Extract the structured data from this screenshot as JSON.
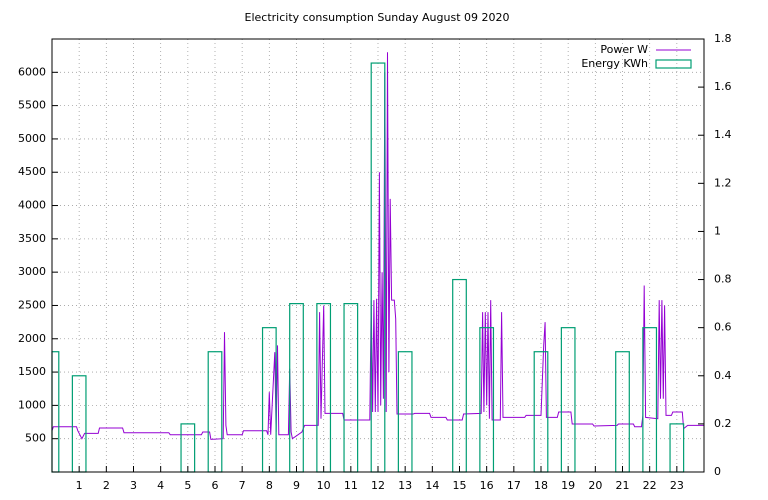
{
  "chart_data": {
    "type": "line",
    "title": "Electricity consumption Sunday August 09 2020",
    "xlim": [
      0,
      24
    ],
    "xticks": [
      1,
      2,
      3,
      4,
      5,
      6,
      7,
      8,
      9,
      10,
      11,
      12,
      13,
      14,
      15,
      16,
      17,
      18,
      19,
      20,
      21,
      22,
      23
    ],
    "ylim": [
      0,
      6500
    ],
    "yticks": [
      500,
      1000,
      1500,
      2000,
      2500,
      3000,
      3500,
      4000,
      4500,
      5000,
      5500,
      6000
    ],
    "y2lim": [
      0,
      1.8
    ],
    "y2ticks": [
      0,
      0.2,
      0.4,
      0.6,
      0.8,
      1,
      1.2,
      1.4,
      1.6,
      1.8
    ],
    "grid": true,
    "legend": "top-right",
    "series": [
      {
        "name": "Power W",
        "color": "#9400d3",
        "x": [
          0,
          0.05,
          0.9,
          0.95,
          1.1,
          1.2,
          1.7,
          1.75,
          2.6,
          2.65,
          4.3,
          4.35,
          5.5,
          5.55,
          5.8,
          5.85,
          6.3,
          6.35,
          6.4,
          6.45,
          7,
          7.05,
          7.9,
          7.95,
          8.0,
          8.05,
          8.2,
          8.25,
          8.3,
          8.35,
          8.7,
          8.75,
          8.8,
          8.85,
          9.2,
          9.3,
          9.8,
          9.85,
          9.9,
          10.0,
          10.05,
          10.7,
          10.75,
          11.7,
          11.75,
          11.8,
          11.85,
          11.9,
          11.95,
          12.0,
          12.05,
          12.1,
          12.15,
          12.2,
          12.25,
          12.3,
          12.35,
          12.4,
          12.45,
          12.5,
          12.6,
          12.65,
          12.7,
          13.3,
          13.35,
          13.9,
          13.95,
          14.5,
          14.55,
          15.1,
          15.15,
          15.8,
          15.85,
          15.9,
          15.95,
          16.0,
          16.05,
          16.1,
          16.15,
          16.2,
          16.5,
          16.55,
          16.6,
          17.4,
          17.45,
          18.0,
          18.1,
          18.15,
          18.2,
          18.6,
          18.65,
          19.1,
          19.15,
          19.9,
          19.95,
          20.8,
          20.85,
          21.4,
          21.45,
          21.7,
          21.75,
          21.8,
          21.85,
          22.3,
          22.35,
          22.4,
          22.45,
          22.5,
          22.55,
          22.6,
          22.8,
          22.85,
          23.2,
          23.25,
          23.4,
          24
        ],
        "values": [
          620,
          680,
          680,
          620,
          500,
          580,
          580,
          660,
          660,
          590,
          590,
          560,
          560,
          600,
          600,
          490,
          500,
          2100,
          700,
          560,
          560,
          620,
          620,
          560,
          1200,
          560,
          1800,
          600,
          1900,
          560,
          560,
          1550,
          600,
          500,
          600,
          700,
          700,
          2400,
          800,
          2500,
          880,
          880,
          780,
          780,
          2580,
          900,
          2580,
          900,
          2600,
          900,
          4500,
          1000,
          3000,
          1100,
          6000,
          900,
          6300,
          1500,
          4100,
          2580,
          2580,
          2300,
          870,
          870,
          880,
          880,
          820,
          820,
          780,
          780,
          870,
          880,
          2400,
          900,
          2400,
          1000,
          2400,
          800,
          2580,
          780,
          780,
          2400,
          820,
          820,
          850,
          850,
          1900,
          2250,
          820,
          820,
          900,
          900,
          720,
          720,
          690,
          700,
          720,
          720,
          680,
          680,
          850,
          2800,
          820,
          800,
          2580,
          1100,
          2580,
          1100,
          2500,
          850,
          850,
          900,
          900,
          650,
          700,
          700
        ]
      },
      {
        "name": "Energy KWh",
        "color": "#009e73",
        "axis": "y2",
        "x": [
          0,
          1,
          5,
          6,
          8,
          9,
          10,
          11,
          12,
          13,
          15,
          16,
          18,
          19,
          21,
          22,
          23
        ],
        "values": [
          0.5,
          0.4,
          0.2,
          0.5,
          0.6,
          0.7,
          0.7,
          0.7,
          1.7,
          0.5,
          0.8,
          0.6,
          0.5,
          0.6,
          0.5,
          0.6,
          0.2
        ]
      }
    ]
  }
}
